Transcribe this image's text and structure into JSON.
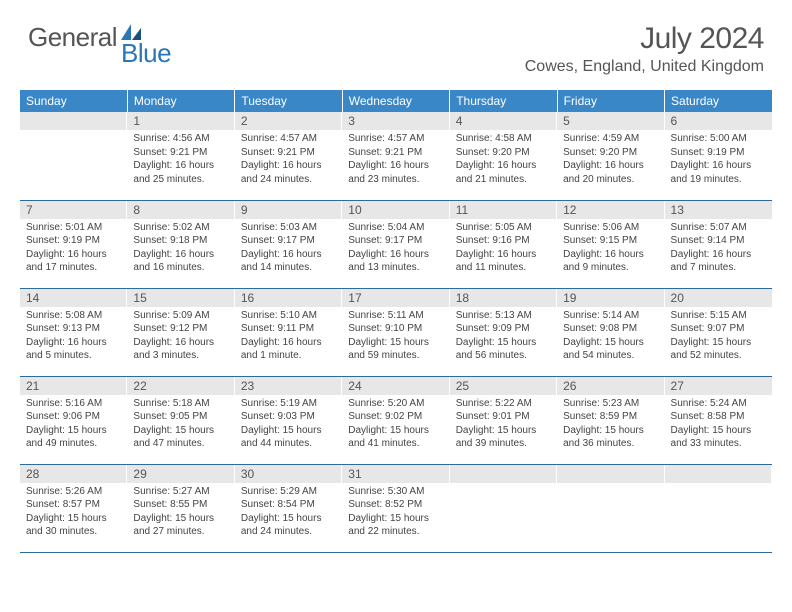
{
  "logo": {
    "text1": "General",
    "text2": "Blue",
    "accent_color": "#2c77b8",
    "gray_color": "#555555"
  },
  "title": "July 2024",
  "location": "Cowes, England, United Kingdom",
  "colors": {
    "header_row_bg": "#3a87c8",
    "header_row_text": "#ffffff",
    "daynum_bg": "#e7e7e7",
    "row_border": "#2c6aa0",
    "body_text": "#444444"
  },
  "weekdays": [
    "Sunday",
    "Monday",
    "Tuesday",
    "Wednesday",
    "Thursday",
    "Friday",
    "Saturday"
  ],
  "weeks": [
    [
      null,
      {
        "n": 1,
        "sunrise": "4:56 AM",
        "sunset": "9:21 PM",
        "daylight": "16 hours and 25 minutes."
      },
      {
        "n": 2,
        "sunrise": "4:57 AM",
        "sunset": "9:21 PM",
        "daylight": "16 hours and 24 minutes."
      },
      {
        "n": 3,
        "sunrise": "4:57 AM",
        "sunset": "9:21 PM",
        "daylight": "16 hours and 23 minutes."
      },
      {
        "n": 4,
        "sunrise": "4:58 AM",
        "sunset": "9:20 PM",
        "daylight": "16 hours and 21 minutes."
      },
      {
        "n": 5,
        "sunrise": "4:59 AM",
        "sunset": "9:20 PM",
        "daylight": "16 hours and 20 minutes."
      },
      {
        "n": 6,
        "sunrise": "5:00 AM",
        "sunset": "9:19 PM",
        "daylight": "16 hours and 19 minutes."
      }
    ],
    [
      {
        "n": 7,
        "sunrise": "5:01 AM",
        "sunset": "9:19 PM",
        "daylight": "16 hours and 17 minutes."
      },
      {
        "n": 8,
        "sunrise": "5:02 AM",
        "sunset": "9:18 PM",
        "daylight": "16 hours and 16 minutes."
      },
      {
        "n": 9,
        "sunrise": "5:03 AM",
        "sunset": "9:17 PM",
        "daylight": "16 hours and 14 minutes."
      },
      {
        "n": 10,
        "sunrise": "5:04 AM",
        "sunset": "9:17 PM",
        "daylight": "16 hours and 13 minutes."
      },
      {
        "n": 11,
        "sunrise": "5:05 AM",
        "sunset": "9:16 PM",
        "daylight": "16 hours and 11 minutes."
      },
      {
        "n": 12,
        "sunrise": "5:06 AM",
        "sunset": "9:15 PM",
        "daylight": "16 hours and 9 minutes."
      },
      {
        "n": 13,
        "sunrise": "5:07 AM",
        "sunset": "9:14 PM",
        "daylight": "16 hours and 7 minutes."
      }
    ],
    [
      {
        "n": 14,
        "sunrise": "5:08 AM",
        "sunset": "9:13 PM",
        "daylight": "16 hours and 5 minutes."
      },
      {
        "n": 15,
        "sunrise": "5:09 AM",
        "sunset": "9:12 PM",
        "daylight": "16 hours and 3 minutes."
      },
      {
        "n": 16,
        "sunrise": "5:10 AM",
        "sunset": "9:11 PM",
        "daylight": "16 hours and 1 minute."
      },
      {
        "n": 17,
        "sunrise": "5:11 AM",
        "sunset": "9:10 PM",
        "daylight": "15 hours and 59 minutes."
      },
      {
        "n": 18,
        "sunrise": "5:13 AM",
        "sunset": "9:09 PM",
        "daylight": "15 hours and 56 minutes."
      },
      {
        "n": 19,
        "sunrise": "5:14 AM",
        "sunset": "9:08 PM",
        "daylight": "15 hours and 54 minutes."
      },
      {
        "n": 20,
        "sunrise": "5:15 AM",
        "sunset": "9:07 PM",
        "daylight": "15 hours and 52 minutes."
      }
    ],
    [
      {
        "n": 21,
        "sunrise": "5:16 AM",
        "sunset": "9:06 PM",
        "daylight": "15 hours and 49 minutes."
      },
      {
        "n": 22,
        "sunrise": "5:18 AM",
        "sunset": "9:05 PM",
        "daylight": "15 hours and 47 minutes."
      },
      {
        "n": 23,
        "sunrise": "5:19 AM",
        "sunset": "9:03 PM",
        "daylight": "15 hours and 44 minutes."
      },
      {
        "n": 24,
        "sunrise": "5:20 AM",
        "sunset": "9:02 PM",
        "daylight": "15 hours and 41 minutes."
      },
      {
        "n": 25,
        "sunrise": "5:22 AM",
        "sunset": "9:01 PM",
        "daylight": "15 hours and 39 minutes."
      },
      {
        "n": 26,
        "sunrise": "5:23 AM",
        "sunset": "8:59 PM",
        "daylight": "15 hours and 36 minutes."
      },
      {
        "n": 27,
        "sunrise": "5:24 AM",
        "sunset": "8:58 PM",
        "daylight": "15 hours and 33 minutes."
      }
    ],
    [
      {
        "n": 28,
        "sunrise": "5:26 AM",
        "sunset": "8:57 PM",
        "daylight": "15 hours and 30 minutes."
      },
      {
        "n": 29,
        "sunrise": "5:27 AM",
        "sunset": "8:55 PM",
        "daylight": "15 hours and 27 minutes."
      },
      {
        "n": 30,
        "sunrise": "5:29 AM",
        "sunset": "8:54 PM",
        "daylight": "15 hours and 24 minutes."
      },
      {
        "n": 31,
        "sunrise": "5:30 AM",
        "sunset": "8:52 PM",
        "daylight": "15 hours and 22 minutes."
      },
      null,
      null,
      null
    ]
  ],
  "labels": {
    "sunrise": "Sunrise:",
    "sunset": "Sunset:",
    "daylight": "Daylight:"
  }
}
